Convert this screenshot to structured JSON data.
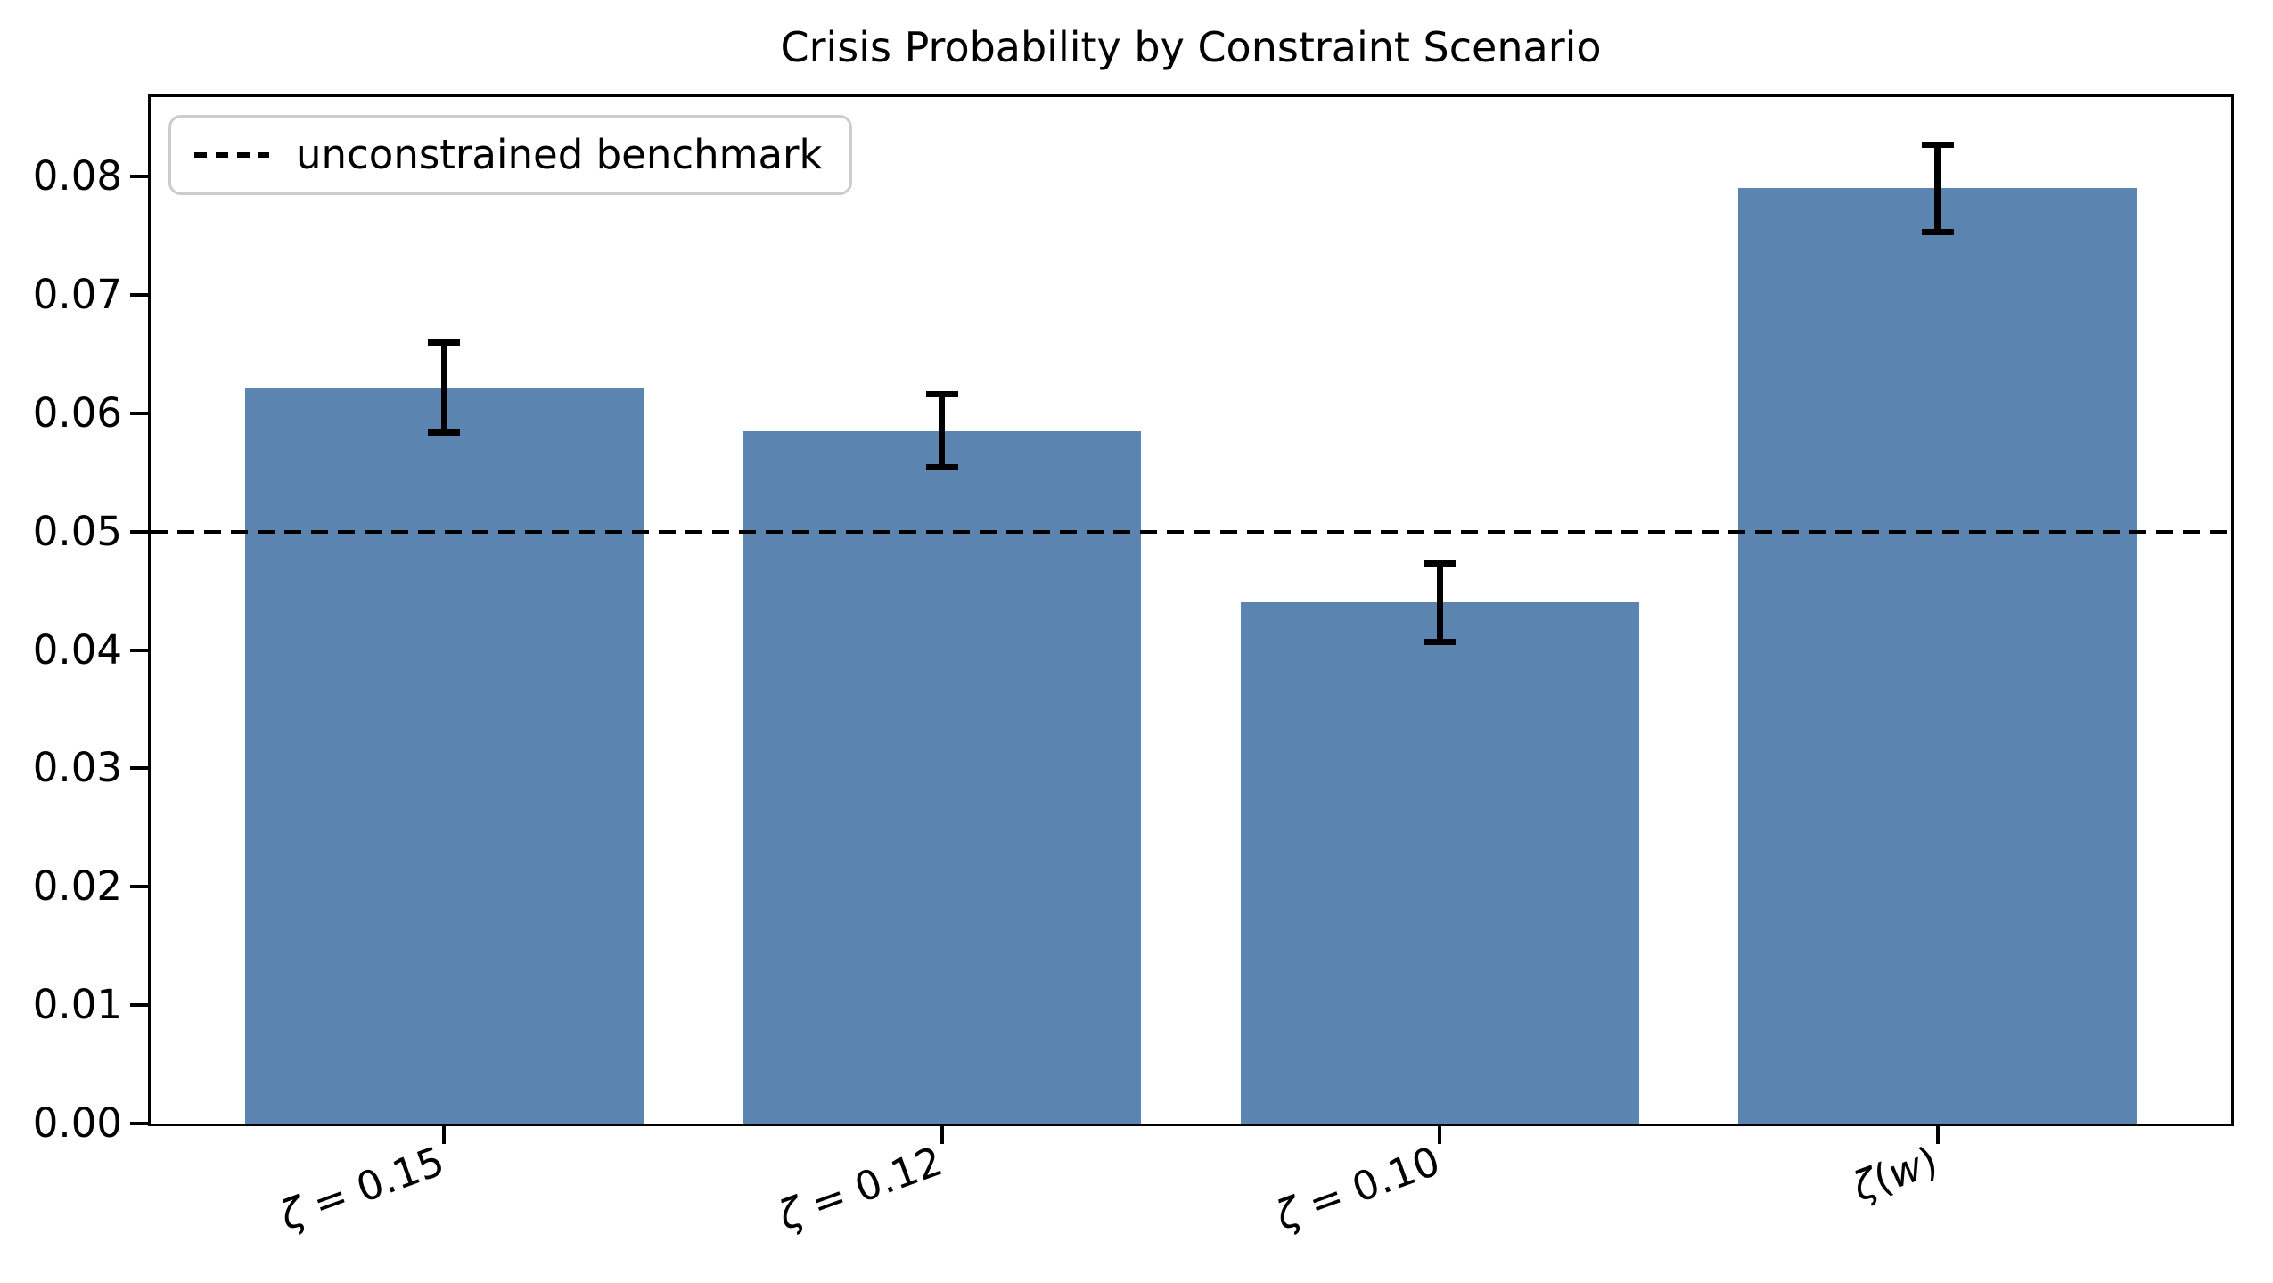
{
  "figure": {
    "title": "Crisis Probability by Constraint Scenario"
  },
  "legend": {
    "label": "unconstrained benchmark"
  },
  "chart_data": {
    "type": "bar",
    "title": "Crisis Probability by Constraint Scenario",
    "categories": [
      "ζ = 0.15",
      "ζ = 0.12",
      "ζ = 0.10",
      "ζ(w)"
    ],
    "values": [
      0.0622,
      0.0585,
      0.044,
      0.079
    ],
    "error_bars": [
      0.0038,
      0.0031,
      0.0033,
      0.0037
    ],
    "benchmark": {
      "label": "unconstrained benchmark",
      "value": 0.05,
      "style": "dashed"
    },
    "xlabel": "",
    "ylabel": "",
    "ylim": [
      0,
      0.0867
    ],
    "ytick_labels": [
      "0.00",
      "0.01",
      "0.02",
      "0.03",
      "0.04",
      "0.05",
      "0.06",
      "0.07",
      "0.08"
    ],
    "grid": false,
    "legend_position": "upper-left",
    "bar_color": "#5c84b1",
    "error_color": "#000000",
    "benchmark_color": "#000000"
  }
}
